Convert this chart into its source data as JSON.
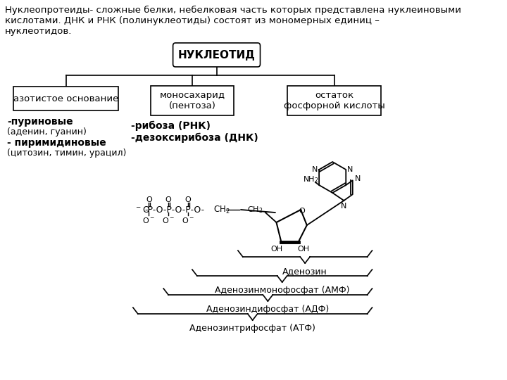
{
  "title_text": "Нуклеопротеиды- сложные белки, небелковая часть которых представлена нуклеиновыми\nкислотами. ДНК и РНК (полинуклеотиды) состоят из мономерных единиц –\nнуклеотидов.",
  "bg_color": "#ffffff",
  "text_color": "#000000",
  "box_nucleotide": "НУКЛЕОТИД",
  "box1": "азотистое основание",
  "box2": "моносахарид\n(пентоза)",
  "box3": "остаток\nфосфорной кислоты",
  "label1a": "-пуриновые",
  "label1b": "(аденин, гуанин)",
  "label1c": "- пиримидиновые",
  "label1d": "(цитозин, тимин, урацил)",
  "label2a": "-рибоза (РНК)",
  "label2b": "-дезоксирибоза (ДНК)",
  "brace1_label": "Аденозин",
  "brace2_label": "Аденозинмонофосфат (АМФ)",
  "brace3_label": "Аденозиндифосфат (АДФ)",
  "brace4_label": "Аденозинтрифосфат (АТФ)"
}
